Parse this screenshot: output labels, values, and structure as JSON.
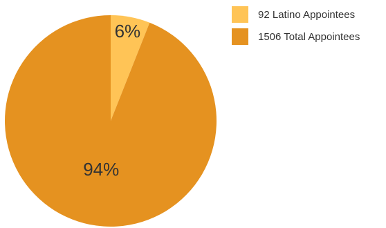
{
  "chart_data": {
    "type": "pie",
    "slices": [
      {
        "label": "92 Latino Appointees",
        "value": 6,
        "display": "6%",
        "color": "#FFC456"
      },
      {
        "label": "1506 Total Appointees",
        "value": 94,
        "display": "94%",
        "color": "#E59220"
      }
    ],
    "legend_position": "top-right",
    "title": ""
  },
  "legend": {
    "items": [
      {
        "label": "92 Latino Appointees",
        "color": "#FFC456"
      },
      {
        "label": "1506 Total Appointees",
        "color": "#E59220"
      }
    ]
  }
}
